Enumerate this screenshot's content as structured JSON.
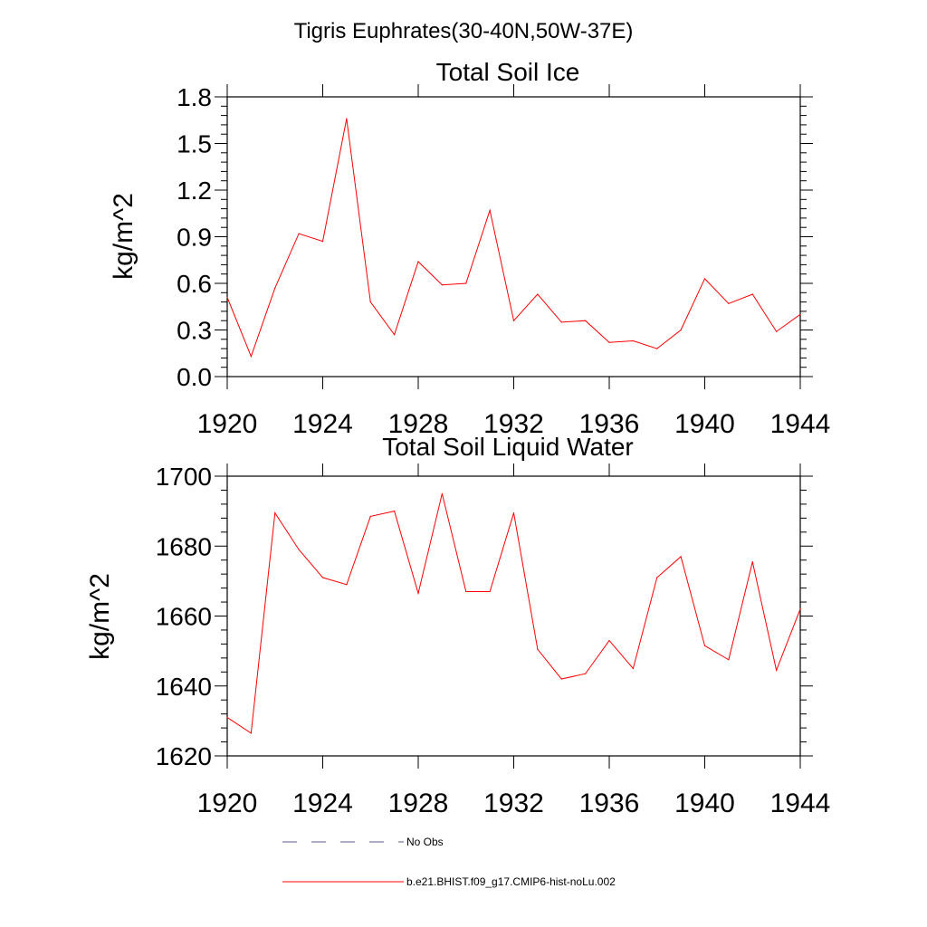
{
  "figure": {
    "suptitle": "Tigris Euphrates(30-40N,50W-37E)"
  },
  "chart_data": [
    {
      "type": "line",
      "title": "Total Soil Ice",
      "xlabel": "",
      "ylabel": "kg/m^2",
      "xlim": [
        1920,
        1944
      ],
      "ylim": [
        0.0,
        1.8
      ],
      "xticks": [
        1920,
        1924,
        1928,
        1932,
        1936,
        1940,
        1944
      ],
      "xtick_labels": [
        "1920",
        "1924",
        "1928",
        "1932",
        "1936",
        "1940",
        "1944"
      ],
      "yticks": [
        0.0,
        0.3,
        0.6,
        0.9,
        1.2,
        1.5,
        1.8
      ],
      "ytick_labels": [
        "0.0",
        "0.3",
        "0.6",
        "0.9",
        "1.2",
        "1.5",
        "1.8"
      ],
      "grid": false,
      "series": [
        {
          "name": "b.e21.BHIST.f09_g17.CMIP6-hist-noLu.002",
          "color": "#ff0000",
          "x": [
            1920,
            1921,
            1922,
            1923,
            1924,
            1925,
            1926,
            1927,
            1928,
            1929,
            1930,
            1931,
            1932,
            1933,
            1934,
            1935,
            1936,
            1937,
            1938,
            1939,
            1940,
            1941,
            1942,
            1943,
            1944
          ],
          "y": [
            0.51,
            0.13,
            0.57,
            0.92,
            0.87,
            1.66,
            0.48,
            0.27,
            0.74,
            0.59,
            0.6,
            1.07,
            0.36,
            0.53,
            0.35,
            0.36,
            0.22,
            0.23,
            0.18,
            0.3,
            0.63,
            0.47,
            0.53,
            0.29,
            0.4
          ]
        }
      ]
    },
    {
      "type": "line",
      "title": "Total Soil Liquid Water",
      "xlabel": "",
      "ylabel": "kg/m^2",
      "xlim": [
        1920,
        1944
      ],
      "ylim": [
        1620,
        1700
      ],
      "xticks": [
        1920,
        1924,
        1928,
        1932,
        1936,
        1940,
        1944
      ],
      "xtick_labels": [
        "1920",
        "1924",
        "1928",
        "1932",
        "1936",
        "1940",
        "1944"
      ],
      "yticks": [
        1620,
        1640,
        1660,
        1680,
        1700
      ],
      "ytick_labels": [
        "1620",
        "1640",
        "1660",
        "1680",
        "1700"
      ],
      "grid": false,
      "series": [
        {
          "name": "b.e21.BHIST.f09_g17.CMIP6-hist-noLu.002",
          "color": "#ff0000",
          "x": [
            1920,
            1921,
            1922,
            1923,
            1924,
            1925,
            1926,
            1927,
            1928,
            1929,
            1930,
            1931,
            1932,
            1933,
            1934,
            1935,
            1936,
            1937,
            1938,
            1939,
            1940,
            1941,
            1942,
            1943,
            1944
          ],
          "y": [
            1631,
            1626.5,
            1689.5,
            1679,
            1671,
            1669,
            1688.5,
            1690,
            1666.5,
            1695,
            1667,
            1667,
            1689.5,
            1650.5,
            1642,
            1643.5,
            1653,
            1645,
            1671,
            1677,
            1651.5,
            1647.5,
            1675.5,
            1644.5,
            1662
          ]
        }
      ]
    }
  ],
  "legend": {
    "placement": "bottom",
    "items": [
      {
        "label": "No Obs",
        "style": "dashed",
        "color": "#5a5a8a"
      },
      {
        "label": "b.e21.BHIST.f09_g17.CMIP6-hist-noLu.002",
        "style": "solid",
        "color": "#ff0000"
      }
    ]
  }
}
